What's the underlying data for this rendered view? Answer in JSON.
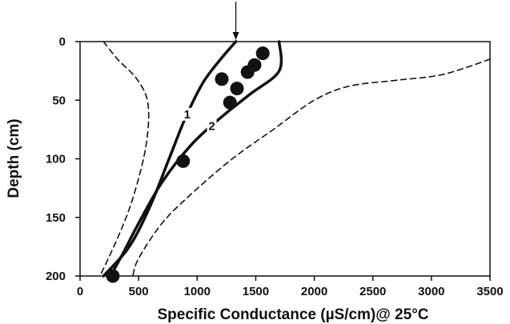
{
  "chart_data": {
    "type": "line",
    "title": "",
    "xlabel": "Specific Conductance (µS/cm)@ 25°C",
    "ylabel": "Depth (cm)",
    "xlim": [
      0,
      3500
    ],
    "ylim": [
      0,
      200
    ],
    "y_inverted": true,
    "x_ticks": [
      "0",
      "500",
      "1000",
      "1500",
      "2000",
      "2500",
      "3000",
      "3500"
    ],
    "y_ticks": [
      "0",
      "50",
      "100",
      "150",
      "200"
    ],
    "grid": false,
    "legend": "none",
    "arrow_marker_x": 1330,
    "series": [
      {
        "label": "1",
        "style": "solid-thick",
        "points": [
          [
            1330,
            0
          ],
          [
            1200,
            15
          ],
          [
            1050,
            35
          ],
          [
            900,
            65
          ],
          [
            760,
            100
          ],
          [
            600,
            140
          ],
          [
            420,
            175
          ],
          [
            200,
            200
          ]
        ]
      },
      {
        "label": "2",
        "style": "solid-thick",
        "points": [
          [
            1700,
            0
          ],
          [
            1700,
            25
          ],
          [
            1450,
            45
          ],
          [
            1200,
            65
          ],
          [
            950,
            88
          ],
          [
            700,
            120
          ],
          [
            500,
            155
          ],
          [
            370,
            180
          ],
          [
            260,
            200
          ]
        ]
      },
      {
        "style": "dashed",
        "points": [
          [
            200,
            0
          ],
          [
            320,
            15
          ],
          [
            470,
            30
          ],
          [
            560,
            45
          ],
          [
            585,
            60
          ],
          [
            575,
            80
          ],
          [
            530,
            105
          ],
          [
            430,
            140
          ],
          [
            310,
            170
          ],
          [
            170,
            200
          ]
        ]
      },
      {
        "style": "dashed",
        "points": [
          [
            3500,
            15
          ],
          [
            3100,
            28
          ],
          [
            2700,
            33
          ],
          [
            2300,
            38
          ],
          [
            2000,
            50
          ],
          [
            1650,
            75
          ],
          [
            1300,
            100
          ],
          [
            950,
            130
          ],
          [
            700,
            155
          ],
          [
            500,
            185
          ],
          [
            450,
            200
          ]
        ]
      }
    ],
    "observed_points": [
      {
        "x": 1560,
        "y": 10
      },
      {
        "x": 1490,
        "y": 20
      },
      {
        "x": 1430,
        "y": 26
      },
      {
        "x": 1210,
        "y": 32
      },
      {
        "x": 1340,
        "y": 40
      },
      {
        "x": 1280,
        "y": 52
      },
      {
        "x": 880,
        "y": 102
      },
      {
        "x": 280,
        "y": 200
      }
    ]
  }
}
